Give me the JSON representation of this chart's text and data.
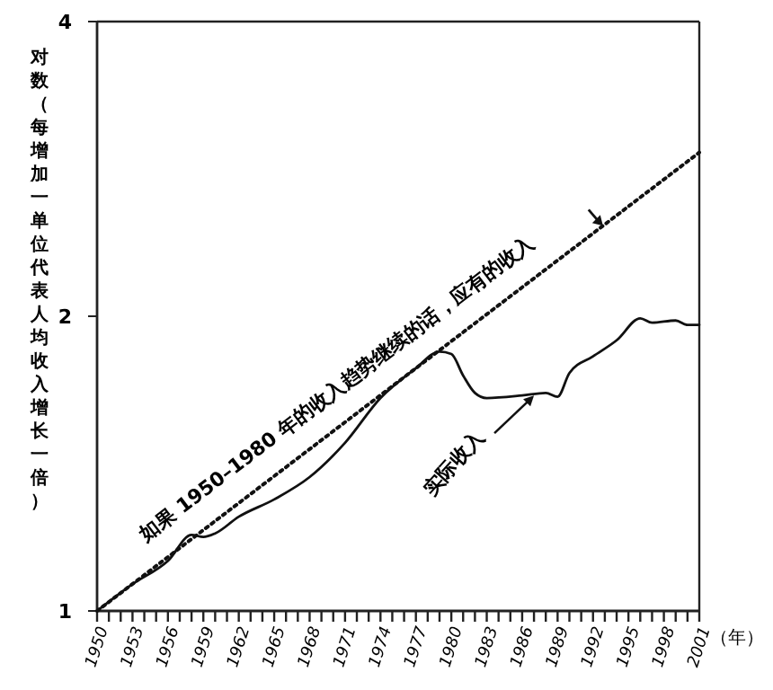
{
  "chart_data": {
    "type": "line",
    "ylabel": "对数（每增加一单位代表人均收入增长一倍）",
    "xlabel": "（年）",
    "log": "y",
    "grid": false,
    "xlim": [
      1950,
      2001
    ],
    "ylim": [
      1,
      4
    ],
    "yticks": [
      1,
      2,
      4
    ],
    "xticks": [
      1950,
      {
        "value": 1951,
        "label": null
      },
      {
        "value": 1952,
        "label": null
      },
      1953,
      {
        "value": 1954,
        "label": null
      },
      {
        "value": 1955,
        "label": null
      },
      1956,
      {
        "value": 1957,
        "label": null
      },
      {
        "value": 1958,
        "label": null
      },
      1959,
      {
        "value": 1960,
        "label": null
      },
      {
        "value": 1961,
        "label": null
      },
      1962,
      {
        "value": 1963,
        "label": null
      },
      {
        "value": 1964,
        "label": null
      },
      1965,
      {
        "value": 1966,
        "label": null
      },
      {
        "value": 1967,
        "label": null
      },
      1968,
      {
        "value": 1969,
        "label": null
      },
      {
        "value": 1970,
        "label": null
      },
      1971,
      {
        "value": 1972,
        "label": null
      },
      {
        "value": 1973,
        "label": null
      },
      1974,
      {
        "value": 1975,
        "label": null
      },
      {
        "value": 1976,
        "label": null
      },
      1977,
      {
        "value": 1978,
        "label": null
      },
      {
        "value": 1979,
        "label": null
      },
      1980,
      {
        "value": 1981,
        "label": null
      },
      {
        "value": 1982,
        "label": null
      },
      1983,
      {
        "value": 1984,
        "label": null
      },
      {
        "value": 1985,
        "label": null
      },
      1986,
      {
        "value": 1987,
        "label": null
      },
      {
        "value": 1988,
        "label": null
      },
      1989,
      {
        "value": 1990,
        "label": null
      },
      {
        "value": 1991,
        "label": null
      },
      1992,
      {
        "value": 1993,
        "label": null
      },
      {
        "value": 1994,
        "label": null
      },
      1995,
      {
        "value": 1996,
        "label": null
      },
      {
        "value": 1997,
        "label": null
      },
      1998,
      {
        "value": 1999,
        "label": null
      },
      {
        "value": 2000,
        "label": null
      },
      2001
    ],
    "series": [
      {
        "color": "#111111",
        "line_style": "dotted",
        "x": [
          1950,
          2001
        ],
        "values": [
          1,
          2.94
        ]
      },
      {
        "color": "#111111",
        "line_style": "solid",
        "x": [
          1950,
          1953,
          1956,
          1958,
          1959,
          1960,
          1962,
          1965,
          1968,
          1971,
          1974,
          1977,
          1979,
          1980,
          1981,
          1982,
          1983,
          1986,
          1988,
          1989,
          1990,
          1992,
          1994,
          1996,
          1997,
          1999,
          2000,
          2001
        ],
        "values": [
          1,
          1.065,
          1.125,
          1.196,
          1.19,
          1.2,
          1.248,
          1.3,
          1.37,
          1.485,
          1.65,
          1.77,
          1.84,
          1.83,
          1.74,
          1.67,
          1.65,
          1.66,
          1.67,
          1.655,
          1.75,
          1.82,
          1.89,
          1.99,
          1.97,
          1.98,
          1.96,
          1.96
        ]
      }
    ],
    "annotations": [
      "如果 1950–1980 年的收入趋势继续的话，应有的收入",
      {
        "text": "实际收入",
        "x": 1987,
        "y": 1.66
      }
    ]
  }
}
